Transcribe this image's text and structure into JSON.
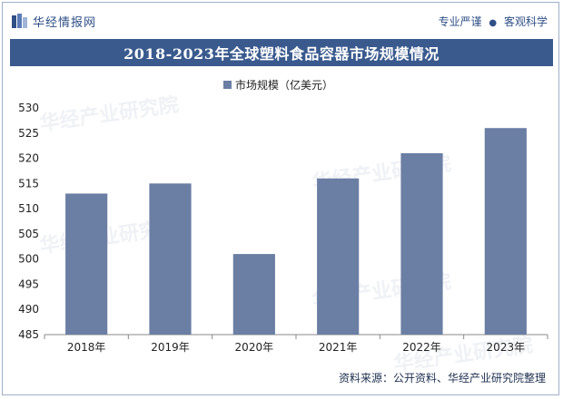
{
  "header": {
    "logo_text": "华经情报网",
    "slogan_left": "专业严谨",
    "slogan_dot": "●",
    "slogan_right": "客观科学"
  },
  "title": "2018-2023年全球塑料食品容器市场规模情况",
  "source": "资料来源：公开资料、华经产业研究院整理",
  "watermark": "华经产业研究院",
  "colors": {
    "bar": "#6b7ea3",
    "title_bg": "#3a5a8e",
    "accent": "#2f4f86"
  },
  "chart_data": {
    "type": "bar",
    "categories": [
      "2018年",
      "2019年",
      "2020年",
      "2021年",
      "2022年",
      "2023年"
    ],
    "series": [
      {
        "name": "市场规模（亿美元）",
        "values": [
          513,
          515,
          501,
          516,
          521,
          526
        ]
      }
    ],
    "ylim": [
      485,
      530
    ],
    "yticks": [
      485,
      490,
      495,
      500,
      505,
      510,
      515,
      520,
      525,
      530
    ],
    "legend_position": "top-center",
    "grid": false
  }
}
